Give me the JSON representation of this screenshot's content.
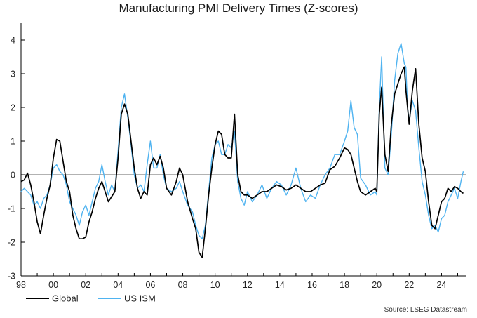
{
  "chart_data": {
    "type": "line",
    "title": "Manufacturing PMI Delivery Times (Z-scores)",
    "source": "Source: LSEG Datastream",
    "x_range": [
      1998.0,
      2025.5
    ],
    "ylim": [
      -3,
      4.5
    ],
    "x_tick_labels": [
      "98",
      "00",
      "02",
      "04",
      "06",
      "08",
      "10",
      "12",
      "14",
      "16",
      "18",
      "20",
      "22",
      "24"
    ],
    "x_tick_years": [
      1998,
      2000,
      2002,
      2004,
      2006,
      2008,
      2010,
      2012,
      2014,
      2016,
      2018,
      2020,
      2022,
      2024
    ],
    "y_ticks": [
      -3,
      -2,
      -1,
      0,
      1,
      2,
      3,
      4
    ],
    "y_tick_labels": [
      "-3",
      "-2",
      "-1",
      "0",
      "1",
      "2",
      "3",
      "4"
    ],
    "legend_position": "bottom-left",
    "series": [
      {
        "name": "Global",
        "color": "#000000",
        "x": [
          1998.0,
          1998.2,
          1998.4,
          1998.6,
          1998.8,
          1999.0,
          1999.2,
          1999.4,
          1999.6,
          1999.8,
          2000.0,
          2000.2,
          2000.4,
          2000.6,
          2000.8,
          2001.0,
          2001.2,
          2001.4,
          2001.6,
          2001.8,
          2002.0,
          2002.2,
          2002.4,
          2002.6,
          2002.8,
          2003.0,
          2003.2,
          2003.4,
          2003.6,
          2003.8,
          2004.0,
          2004.2,
          2004.4,
          2004.6,
          2004.8,
          2005.0,
          2005.2,
          2005.4,
          2005.6,
          2005.8,
          2006.0,
          2006.2,
          2006.4,
          2006.6,
          2006.8,
          2007.0,
          2007.3,
          2007.6,
          2007.8,
          2008.0,
          2008.3,
          2008.6,
          2008.8,
          2009.0,
          2009.2,
          2009.4,
          2009.6,
          2009.8,
          2010.0,
          2010.2,
          2010.4,
          2010.6,
          2010.8,
          2011.0,
          2011.2,
          2011.4,
          2011.6,
          2011.8,
          2012.0,
          2012.3,
          2012.6,
          2012.9,
          2013.2,
          2013.5,
          2013.8,
          2014.1,
          2014.4,
          2014.7,
          2015.0,
          2015.3,
          2015.6,
          2015.9,
          2016.2,
          2016.5,
          2016.8,
          2017.1,
          2017.4,
          2017.7,
          2018.0,
          2018.2,
          2018.4,
          2018.6,
          2018.8,
          2019.0,
          2019.3,
          2019.6,
          2019.9,
          2020.0,
          2020.15,
          2020.3,
          2020.5,
          2020.7,
          2020.9,
          2021.1,
          2021.3,
          2021.5,
          2021.7,
          2021.8,
          2021.9,
          2022.0,
          2022.2,
          2022.4,
          2022.6,
          2022.8,
          2023.0,
          2023.2,
          2023.4,
          2023.6,
          2023.8,
          2024.0,
          2024.2,
          2024.4,
          2024.6,
          2024.8,
          2025.0,
          2025.2,
          2025.35
        ],
        "values": [
          -0.2,
          -0.15,
          0.05,
          -0.3,
          -0.8,
          -1.4,
          -1.75,
          -1.2,
          -0.7,
          -0.3,
          0.5,
          1.05,
          1.0,
          0.4,
          -0.2,
          -0.5,
          -1.2,
          -1.6,
          -1.9,
          -1.9,
          -1.85,
          -1.4,
          -1.1,
          -0.7,
          -0.4,
          -0.2,
          -0.5,
          -0.8,
          -0.65,
          -0.5,
          0.5,
          1.8,
          2.1,
          1.8,
          1.0,
          0.2,
          -0.4,
          -0.7,
          -0.5,
          -0.6,
          0.3,
          0.5,
          0.3,
          0.55,
          0.2,
          -0.4,
          -0.6,
          -0.2,
          0.2,
          0.0,
          -0.8,
          -1.3,
          -1.6,
          -2.3,
          -2.45,
          -1.6,
          -0.6,
          0.2,
          0.9,
          1.3,
          1.2,
          0.6,
          0.5,
          0.5,
          1.8,
          0.0,
          -0.5,
          -0.6,
          -0.6,
          -0.7,
          -0.6,
          -0.5,
          -0.5,
          -0.4,
          -0.3,
          -0.35,
          -0.45,
          -0.4,
          -0.3,
          -0.4,
          -0.5,
          -0.5,
          -0.4,
          -0.3,
          -0.25,
          0.15,
          0.25,
          0.5,
          0.8,
          0.75,
          0.6,
          0.2,
          -0.2,
          -0.5,
          -0.6,
          -0.5,
          -0.4,
          -0.5,
          1.8,
          2.6,
          0.6,
          0.1,
          1.5,
          2.4,
          2.7,
          3.0,
          3.2,
          2.5,
          2.0,
          1.5,
          2.5,
          3.15,
          1.5,
          0.5,
          0.1,
          -0.8,
          -1.5,
          -1.6,
          -1.2,
          -0.8,
          -0.7,
          -0.4,
          -0.5,
          -0.35,
          -0.4,
          -0.5,
          -0.55
        ]
      },
      {
        "name": "US ISM",
        "color": "#4fb3f0",
        "x": [
          1998.0,
          1998.2,
          1998.4,
          1998.6,
          1998.8,
          1999.0,
          1999.2,
          1999.4,
          1999.6,
          1999.8,
          2000.0,
          2000.2,
          2000.4,
          2000.6,
          2000.8,
          2001.0,
          2001.2,
          2001.4,
          2001.6,
          2001.8,
          2002.0,
          2002.2,
          2002.4,
          2002.6,
          2002.8,
          2003.0,
          2003.2,
          2003.4,
          2003.6,
          2003.8,
          2004.0,
          2004.2,
          2004.4,
          2004.6,
          2004.8,
          2005.0,
          2005.2,
          2005.4,
          2005.6,
          2005.8,
          2006.0,
          2006.2,
          2006.4,
          2006.6,
          2006.8,
          2007.0,
          2007.3,
          2007.6,
          2007.8,
          2008.0,
          2008.3,
          2008.6,
          2008.8,
          2009.0,
          2009.2,
          2009.4,
          2009.6,
          2009.8,
          2010.0,
          2010.2,
          2010.4,
          2010.6,
          2010.8,
          2011.0,
          2011.2,
          2011.4,
          2011.6,
          2011.8,
          2012.0,
          2012.3,
          2012.6,
          2012.9,
          2013.2,
          2013.5,
          2013.8,
          2014.1,
          2014.4,
          2014.7,
          2015.0,
          2015.3,
          2015.6,
          2015.9,
          2016.2,
          2016.5,
          2016.8,
          2017.1,
          2017.4,
          2017.7,
          2018.0,
          2018.2,
          2018.4,
          2018.6,
          2018.8,
          2019.0,
          2019.3,
          2019.6,
          2019.9,
          2020.0,
          2020.15,
          2020.3,
          2020.5,
          2020.7,
          2020.9,
          2021.1,
          2021.3,
          2021.5,
          2021.7,
          2021.8,
          2021.9,
          2022.0,
          2022.2,
          2022.4,
          2022.6,
          2022.8,
          2023.0,
          2023.2,
          2023.4,
          2023.6,
          2023.8,
          2024.0,
          2024.2,
          2024.4,
          2024.6,
          2024.8,
          2025.0,
          2025.2,
          2025.35
        ],
        "values": [
          -0.5,
          -0.4,
          -0.5,
          -0.6,
          -0.9,
          -0.8,
          -1.0,
          -0.7,
          -0.6,
          -0.3,
          0.2,
          0.3,
          0.1,
          0.0,
          -0.3,
          -0.8,
          -1.0,
          -1.2,
          -1.5,
          -1.1,
          -0.9,
          -1.2,
          -0.8,
          -0.4,
          -0.2,
          0.3,
          -0.2,
          -0.6,
          -0.3,
          -0.5,
          0.7,
          2.0,
          2.4,
          1.7,
          0.9,
          0.0,
          -0.4,
          -0.3,
          -0.5,
          0.3,
          1.0,
          0.2,
          0.2,
          0.6,
          0.0,
          -0.4,
          -0.5,
          -0.4,
          -0.2,
          -0.5,
          -0.9,
          -1.1,
          -1.5,
          -1.8,
          -1.9,
          -1.5,
          -0.5,
          0.5,
          0.9,
          1.0,
          0.6,
          0.6,
          0.9,
          0.8,
          1.3,
          -0.2,
          -0.7,
          -0.9,
          -0.5,
          -0.8,
          -0.6,
          -0.3,
          -0.7,
          -0.4,
          -0.2,
          -0.3,
          -0.6,
          -0.3,
          0.2,
          -0.4,
          -0.8,
          -0.6,
          -0.7,
          -0.3,
          0.0,
          0.2,
          0.6,
          0.6,
          1.0,
          1.3,
          2.2,
          1.4,
          1.2,
          -0.1,
          -0.3,
          -0.6,
          -0.5,
          -0.6,
          2.0,
          3.5,
          0.2,
          0.0,
          1.2,
          2.8,
          3.6,
          3.9,
          3.3,
          3.2,
          2.0,
          1.6,
          2.2,
          1.9,
          0.8,
          -0.2,
          -0.6,
          -1.2,
          -1.6,
          -1.5,
          -1.7,
          -1.3,
          -1.2,
          -0.8,
          -0.6,
          -0.4,
          -0.7,
          -0.2,
          0.1
        ]
      }
    ]
  }
}
